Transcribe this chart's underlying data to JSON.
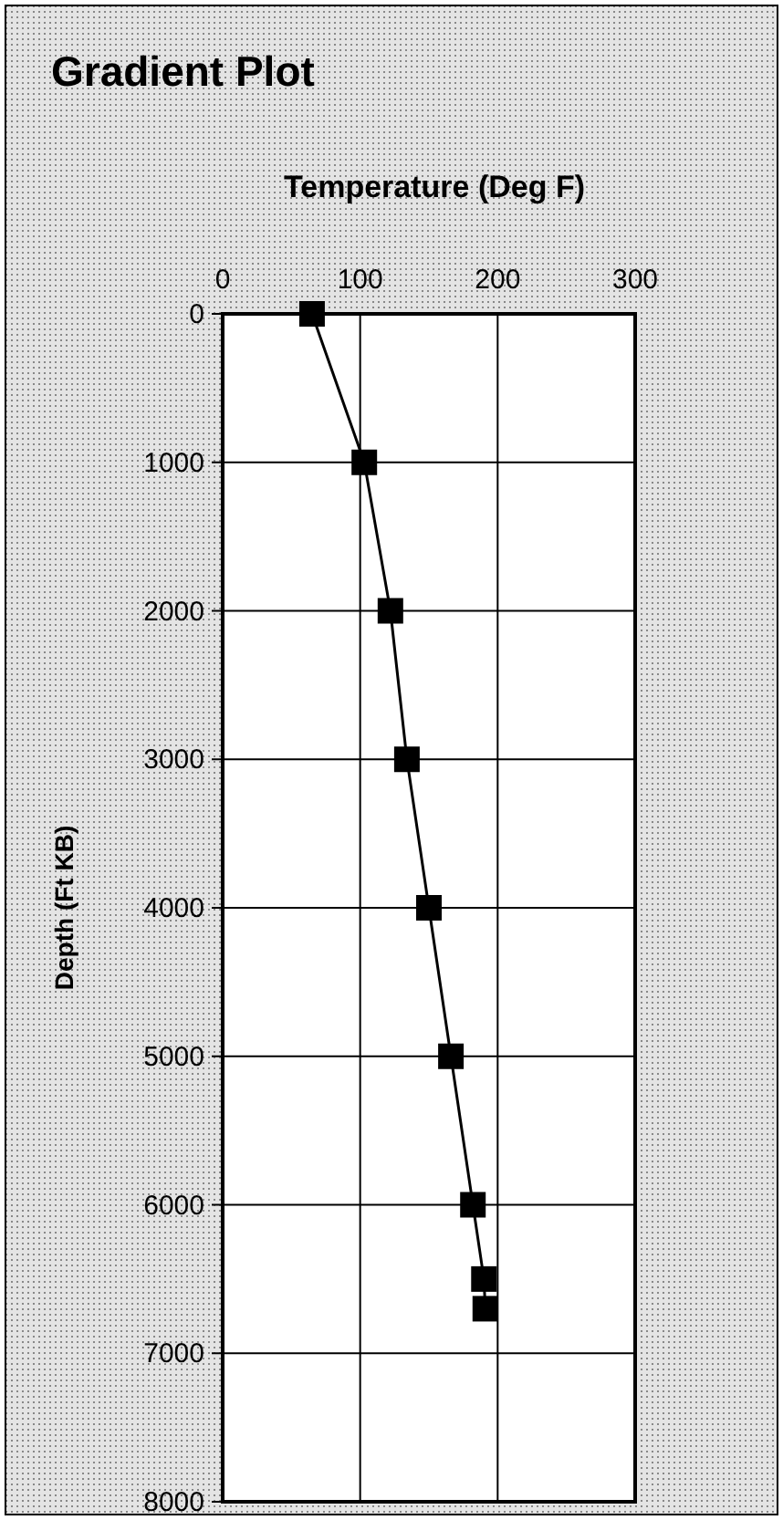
{
  "chart_data": {
    "type": "line",
    "title": "Gradient Plot",
    "xlabel": "Temperature (Deg F)",
    "ylabel": "Depth (Ft KB)",
    "series": [
      {
        "color": "#000000",
        "x": [
          65,
          103,
          122,
          134,
          150,
          166,
          182,
          190,
          191
        ],
        "values": [
          0,
          1000,
          2000,
          3000,
          4000,
          5000,
          6000,
          6500,
          6700
        ]
      }
    ],
    "xlim": [
      0,
      300
    ],
    "xticks": [
      0,
      100,
      200,
      300
    ],
    "ylim": [
      8000,
      0
    ],
    "yticks": [
      0,
      1000,
      2000,
      3000,
      4000,
      5000,
      6000,
      7000,
      8000
    ],
    "grid": true,
    "marker": "square",
    "line_style": "solid"
  }
}
